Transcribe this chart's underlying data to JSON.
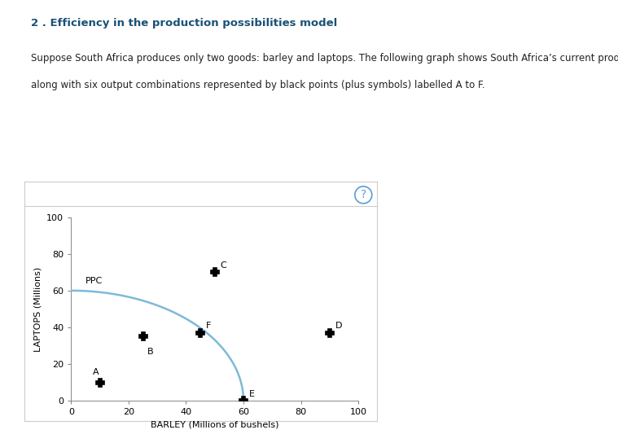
{
  "title": "2 . Efficiency in the production possibilities model",
  "description_line1": "Suppose South Africa produces only two goods: barley and laptops. The following graph shows South Africa’s current production possibilities curve,",
  "description_line2": "along with six output combinations represented by black points (plus symbols) labelled A to F.",
  "xlabel": "BARLEY (Millions of bushels)",
  "ylabel": "LAPTOPS (Millions)",
  "xlim": [
    0,
    100
  ],
  "ylim": [
    0,
    100
  ],
  "xticks": [
    0,
    20,
    40,
    60,
    80,
    100
  ],
  "yticks": [
    0,
    20,
    40,
    60,
    80,
    100
  ],
  "ppc_label": "PPC",
  "ppc_color": "#7fb9d8",
  "ppc_x_max": 60,
  "ppc_y_max": 60,
  "points": {
    "A": [
      10,
      10
    ],
    "B": [
      25,
      35
    ],
    "C": [
      50,
      70
    ],
    "D": [
      90,
      37
    ],
    "E": [
      60,
      0
    ],
    "F": [
      45,
      37
    ]
  },
  "point_label_positions": {
    "A": [
      -2.5,
      3.5,
      "left",
      "bottom"
    ],
    "B": [
      1.5,
      -6,
      "left",
      "top"
    ],
    "C": [
      2.0,
      1.5,
      "left",
      "bottom"
    ],
    "D": [
      2.0,
      1.5,
      "left",
      "bottom"
    ],
    "E": [
      2.0,
      1.5,
      "left",
      "bottom"
    ],
    "F": [
      2.0,
      1.5,
      "left",
      "bottom"
    ]
  },
  "page_bg": "#ffffff",
  "panel_bg": "#ffffff",
  "panel_border": "#cccccc",
  "header_bg": "#ffffff",
  "header_border": "#cccccc",
  "deco_line_color": "#c8b87a",
  "title_color": "#1a5276",
  "body_color": "#222222",
  "title_fontsize": 9.5,
  "body_fontsize": 8.5,
  "axis_label_fontsize": 8,
  "tick_fontsize": 8,
  "point_label_fontsize": 8,
  "ppc_label_fontsize": 8,
  "question_color": "#5b9bd5",
  "question_fontsize": 10
}
